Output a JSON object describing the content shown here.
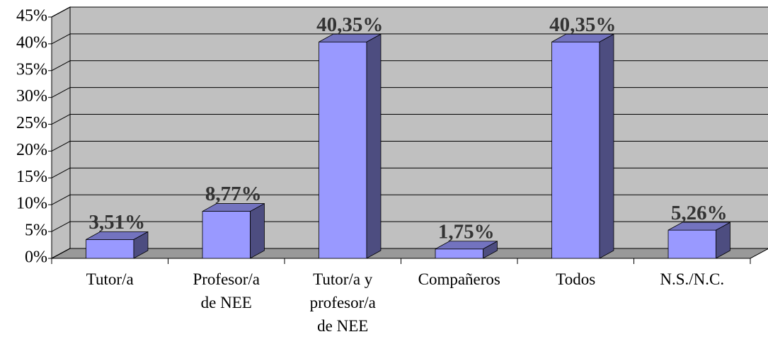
{
  "chart_data": {
    "type": "bar3d",
    "categories": [
      "Tutor/a",
      "Profesor/a\nde NEE",
      "Tutor/a y\nprofesor/a\nde NEE",
      "Compañeros",
      "Todos",
      "N.S./N.C."
    ],
    "values": [
      3.51,
      8.77,
      40.35,
      1.75,
      40.35,
      5.26
    ],
    "value_labels": [
      "3,51%",
      "8,77%",
      "40,35%",
      "1,75%",
      "40,35%",
      "5,26%"
    ],
    "color": "#9999ff",
    "ylim": [
      0,
      45
    ],
    "yticks": [
      {
        "value": 0,
        "label": "0%"
      },
      {
        "value": 5,
        "label": "5%"
      },
      {
        "value": 10,
        "label": "10%"
      },
      {
        "value": 15,
        "label": "15%"
      },
      {
        "value": 20,
        "label": "20%"
      },
      {
        "value": 25,
        "label": "25%"
      },
      {
        "value": 30,
        "label": "30%"
      },
      {
        "value": 35,
        "label": "35%"
      },
      {
        "value": 40,
        "label": "40%"
      },
      {
        "value": 45,
        "label": "45%"
      }
    ],
    "grid": true
  }
}
